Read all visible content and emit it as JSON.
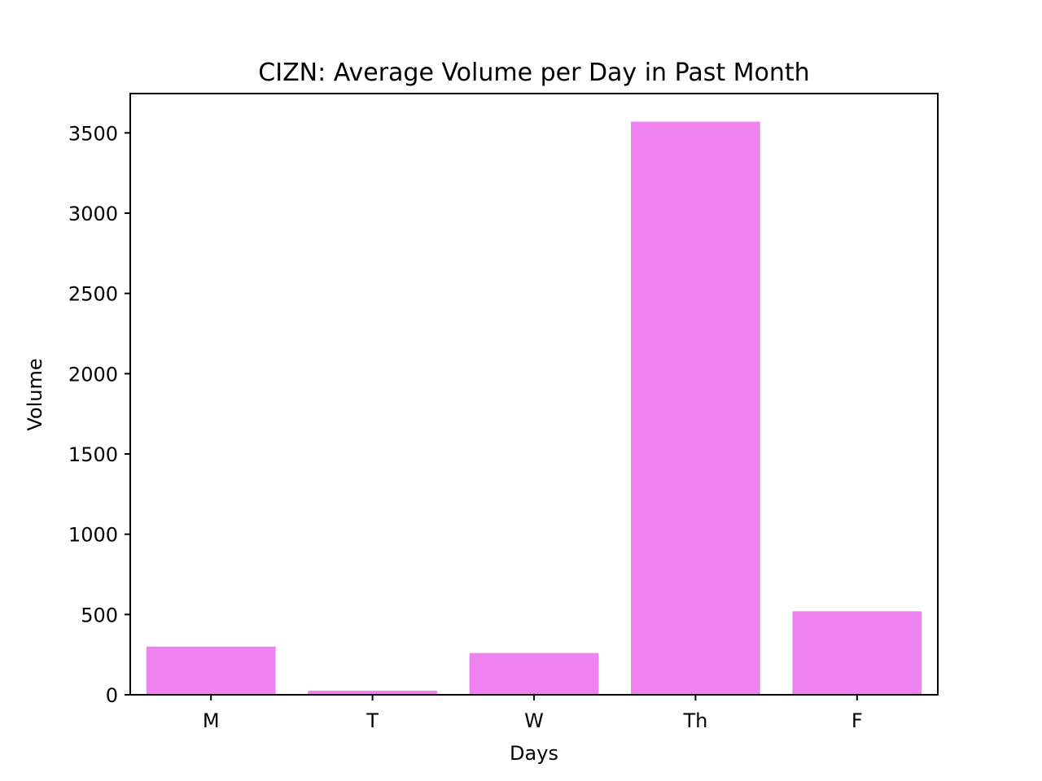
{
  "chart_data": {
    "type": "bar",
    "title": "CIZN: Average Volume per Day in Past Month",
    "xlabel": "Days",
    "ylabel": "Volume",
    "categories": [
      "M",
      "T",
      "W",
      "Th",
      "F"
    ],
    "values": [
      300,
      25,
      260,
      3570,
      520
    ],
    "ylim": [
      0,
      3745
    ],
    "yticks": [
      0,
      500,
      1000,
      1500,
      2000,
      2500,
      3000,
      3500
    ],
    "ytick_labels": [
      "0",
      "500",
      "1000",
      "1500",
      "2000",
      "2500",
      "3000",
      "3500"
    ],
    "grid": false,
    "bar_color": "#ee82ee"
  }
}
